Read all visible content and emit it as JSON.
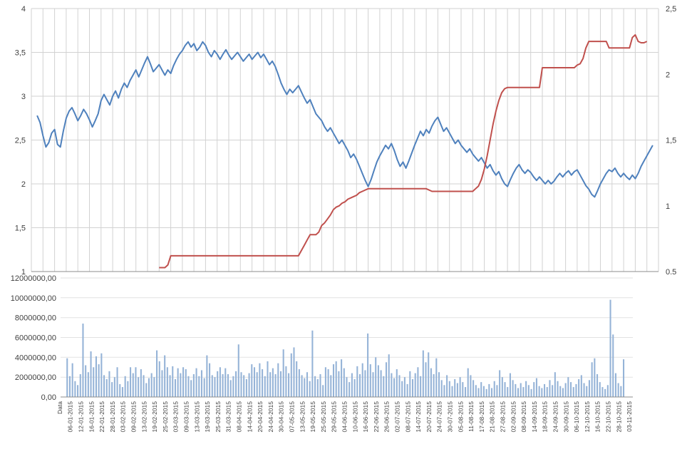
{
  "chart_data": [
    {
      "type": "line",
      "id": "price-lines",
      "categories_count": 217,
      "label_every": 4,
      "grid": true,
      "grid_color": "#d2d2d2",
      "axis_color": "#8c8c8c",
      "left_axis": {
        "min": 1,
        "max": 4,
        "tick_values": [
          4,
          3.5,
          3,
          2.5,
          2,
          1.5,
          1
        ],
        "ticks": [
          "4",
          "3,5",
          "3",
          "2,5",
          "2",
          "1,5",
          "1"
        ]
      },
      "right_axis": {
        "min": 0.5,
        "max": 2.5,
        "tick_values": [
          2.5,
          2,
          1.5,
          1,
          0.5
        ],
        "ticks": [
          "2,5",
          "2",
          "1,5",
          "1",
          "0,5"
        ]
      },
      "series": [
        {
          "id": "blue-line-series",
          "name": "blue_line",
          "axis": "left",
          "color": "#4f81bd",
          "start_index": 2,
          "values": [
            2.78,
            2.7,
            2.55,
            2.42,
            2.47,
            2.58,
            2.62,
            2.45,
            2.42,
            2.6,
            2.75,
            2.83,
            2.87,
            2.8,
            2.72,
            2.78,
            2.85,
            2.8,
            2.73,
            2.65,
            2.72,
            2.8,
            2.95,
            3.02,
            2.96,
            2.9,
            3.0,
            3.06,
            2.98,
            3.08,
            3.15,
            3.1,
            3.18,
            3.24,
            3.3,
            3.22,
            3.3,
            3.38,
            3.45,
            3.37,
            3.28,
            3.32,
            3.36,
            3.3,
            3.24,
            3.3,
            3.26,
            3.35,
            3.42,
            3.48,
            3.52,
            3.58,
            3.62,
            3.56,
            3.6,
            3.52,
            3.56,
            3.62,
            3.58,
            3.5,
            3.45,
            3.52,
            3.48,
            3.42,
            3.48,
            3.53,
            3.47,
            3.42,
            3.46,
            3.5,
            3.45,
            3.4,
            3.44,
            3.48,
            3.42,
            3.46,
            3.5,
            3.44,
            3.48,
            3.42,
            3.36,
            3.4,
            3.34,
            3.25,
            3.15,
            3.08,
            3.02,
            3.08,
            3.04,
            3.08,
            3.12,
            3.05,
            2.98,
            2.92,
            2.96,
            2.88,
            2.8,
            2.76,
            2.72,
            2.65,
            2.6,
            2.64,
            2.58,
            2.52,
            2.46,
            2.5,
            2.44,
            2.38,
            2.3,
            2.34,
            2.28,
            2.2,
            2.12,
            2.04,
            1.97,
            2.05,
            2.15,
            2.25,
            2.32,
            2.38,
            2.44,
            2.4,
            2.46,
            2.38,
            2.28,
            2.2,
            2.25,
            2.18,
            2.26,
            2.35,
            2.44,
            2.52,
            2.6,
            2.55,
            2.62,
            2.58,
            2.66,
            2.72,
            2.76,
            2.68,
            2.6,
            2.64,
            2.58,
            2.52,
            2.46,
            2.5,
            2.44,
            2.4,
            2.36,
            2.4,
            2.34,
            2.3,
            2.26,
            2.3,
            2.24,
            2.18,
            2.22,
            2.15,
            2.1,
            2.14,
            2.06,
            2.0,
            1.97,
            2.05,
            2.12,
            2.18,
            2.22,
            2.16,
            2.12,
            2.16,
            2.13,
            2.08,
            2.04,
            2.08,
            2.04,
            2.0,
            2.04,
            2.0,
            2.03,
            2.08,
            2.12,
            2.08,
            2.12,
            2.15,
            2.1,
            2.14,
            2.16,
            2.1,
            2.04,
            1.98,
            1.94,
            1.88,
            1.85,
            1.92,
            2.0,
            2.06,
            2.12,
            2.16,
            2.14,
            2.18,
            2.12,
            2.08,
            2.12,
            2.08,
            2.05,
            2.1,
            2.06,
            2.12,
            2.2,
            2.26,
            2.32,
            2.38,
            2.44
          ]
        },
        {
          "id": "red-step-series",
          "name": "red_step_line",
          "axis": "right",
          "color": "#c0504d",
          "start_index": 44,
          "values": [
            0.53,
            0.53,
            0.53,
            0.55,
            0.62,
            0.62,
            0.62,
            0.62,
            0.62,
            0.62,
            0.62,
            0.62,
            0.62,
            0.62,
            0.62,
            0.62,
            0.62,
            0.62,
            0.62,
            0.62,
            0.62,
            0.62,
            0.62,
            0.62,
            0.62,
            0.62,
            0.62,
            0.62,
            0.62,
            0.62,
            0.62,
            0.62,
            0.62,
            0.62,
            0.62,
            0.62,
            0.62,
            0.62,
            0.62,
            0.62,
            0.62,
            0.62,
            0.62,
            0.62,
            0.62,
            0.62,
            0.62,
            0.62,
            0.62,
            0.66,
            0.7,
            0.74,
            0.78,
            0.78,
            0.78,
            0.8,
            0.85,
            0.87,
            0.9,
            0.93,
            0.97,
            0.99,
            1.0,
            1.02,
            1.03,
            1.05,
            1.06,
            1.07,
            1.08,
            1.1,
            1.11,
            1.12,
            1.13,
            1.13,
            1.13,
            1.13,
            1.13,
            1.13,
            1.13,
            1.13,
            1.13,
            1.13,
            1.13,
            1.13,
            1.13,
            1.13,
            1.13,
            1.13,
            1.13,
            1.13,
            1.13,
            1.13,
            1.13,
            1.12,
            1.11,
            1.11,
            1.11,
            1.11,
            1.11,
            1.11,
            1.11,
            1.11,
            1.11,
            1.11,
            1.11,
            1.11,
            1.11,
            1.11,
            1.11,
            1.13,
            1.15,
            1.2,
            1.28,
            1.38,
            1.5,
            1.62,
            1.72,
            1.8,
            1.86,
            1.89,
            1.9,
            1.9,
            1.9,
            1.9,
            1.9,
            1.9,
            1.9,
            1.9,
            1.9,
            1.9,
            1.9,
            1.9,
            2.05,
            2.05,
            2.05,
            2.05,
            2.05,
            2.05,
            2.05,
            2.05,
            2.05,
            2.05,
            2.05,
            2.05,
            2.07,
            2.08,
            2.12,
            2.2,
            2.25,
            2.25,
            2.25,
            2.25,
            2.25,
            2.25,
            2.25,
            2.2,
            2.2,
            2.2,
            2.2,
            2.2,
            2.2,
            2.2,
            2.2,
            2.28,
            2.3,
            2.25,
            2.24,
            2.24,
            2.25
          ]
        }
      ]
    },
    {
      "type": "bar",
      "id": "volume-bars-chart",
      "categories_count": 217,
      "label_every": 4,
      "ymin": 0,
      "ymax": 12000000,
      "tick_values": [
        12000000,
        10000000,
        8000000,
        6000000,
        4000000,
        2000000,
        0
      ],
      "ticks": [
        "12000000,00",
        "10000000,00",
        "8000000,00",
        "6000000,00",
        "4000000,00",
        "2000000,00",
        "0,00"
      ],
      "color": "#95b3d7",
      "grid_color": "#e2e2e2",
      "axis_color": "#8c8c8c",
      "start_index": 2,
      "values": [
        3900000,
        2100000,
        3400000,
        1600000,
        1200000,
        2300000,
        7400000,
        3200000,
        2500000,
        4600000,
        3000000,
        4100000,
        3300000,
        4400000,
        2200000,
        1800000,
        2600000,
        1500000,
        2000000,
        3000000,
        1300000,
        1000000,
        2100000,
        1600000,
        3000000,
        2400000,
        3000000,
        2000000,
        2800000,
        2200000,
        1400000,
        1900000,
        2400000,
        2000000,
        4700000,
        3600000,
        2700000,
        4200000,
        3000000,
        2200000,
        3100000,
        1800000,
        2900000,
        2400000,
        3000000,
        2800000,
        2100000,
        1700000,
        2300000,
        2900000,
        2100000,
        2700000,
        1900000,
        4200000,
        3400000,
        2200000,
        2000000,
        2600000,
        3000000,
        2300000,
        2900000,
        2300000,
        1700000,
        2100000,
        2600000,
        5300000,
        2500000,
        2200000,
        1800000,
        2400000,
        3300000,
        3000000,
        2500000,
        3400000,
        2800000,
        2100000,
        3600000,
        2500000,
        2900000,
        2300000,
        3400000,
        2600000,
        4800000,
        3100000,
        2400000,
        4400000,
        5000000,
        3600000,
        2800000,
        2200000,
        1900000,
        2500000,
        1600000,
        6700000,
        2100000,
        1800000,
        2300000,
        1200000,
        3000000,
        2800000,
        2200000,
        3300000,
        3600000,
        2600000,
        3800000,
        2900000,
        2000000,
        1500000,
        2400000,
        1800000,
        3100000,
        2300000,
        3400000,
        2700000,
        6400000,
        3300000,
        2500000,
        4000000,
        3200000,
        2700000,
        2100000,
        3500000,
        4300000,
        2400000,
        1900000,
        2800000,
        2200000,
        1600000,
        2000000,
        1300000,
        2600000,
        1800000,
        2400000,
        3000000,
        2100000,
        4700000,
        3500000,
        4500000,
        2900000,
        2300000,
        3900000,
        2500000,
        1700000,
        1200000,
        2200000,
        1600000,
        1100000,
        1800000,
        1400000,
        2000000,
        1500000,
        1000000,
        2900000,
        2200000,
        1700000,
        1200000,
        900000,
        1500000,
        1100000,
        800000,
        1300000,
        900000,
        1600000,
        1200000,
        2700000,
        2000000,
        1500000,
        1000000,
        2400000,
        1700000,
        1300000,
        900000,
        1400000,
        1000000,
        1600000,
        1200000,
        800000,
        1500000,
        1900000,
        1100000,
        900000,
        1300000,
        1000000,
        1700000,
        1200000,
        2500000,
        1600000,
        1100000,
        900000,
        1400000,
        2000000,
        1500000,
        1000000,
        1300000,
        1800000,
        2200000,
        1400000,
        1100000,
        1700000,
        3500000,
        3900000,
        2300000,
        1500000,
        1000000,
        800000,
        1200000,
        9800000,
        6300000,
        2400000,
        1400000,
        1100000,
        3800000
      ],
      "x_labels": [
        "Data",
        "06-01-2015",
        "12-01-2015",
        "16-01-2015",
        "22-01-2015",
        "28-01-2015",
        "03-02-2015",
        "09-02-2015",
        "13-02-2015",
        "19-02-2015",
        "25-02-2015",
        "03-03-2015",
        "09-03-2015",
        "13-03-2015",
        "19-03-2015",
        "25-03-2015",
        "31-03-2015",
        "08-04-2015",
        "14-04-2015",
        "20-04-2015",
        "24-04-2015",
        "30-04-2015",
        "07-05-2015",
        "13-05-2015",
        "19-05-2015",
        "25-05-2015",
        "29-05-2015",
        "04-06-2015",
        "10-06-2015",
        "16-06-2015",
        "22-06-2015",
        "26-06-2015",
        "02-07-2015",
        "08-07-2015",
        "14-07-2015",
        "20-07-2015",
        "24-07-2015",
        "30-07-2015",
        "05-08-2015",
        "11-08-2015",
        "17-08-2015",
        "21-08-2015",
        "27-08-2015",
        "02-09-2015",
        "08-09-2015",
        "14-09-2015",
        "18-09-2015",
        "24-09-2015",
        "30-09-2015",
        "06-10-2015",
        "12-10-2015",
        "16-10-2015",
        "22-10-2015",
        "28-10-2015",
        "03-11-2015"
      ]
    }
  ]
}
